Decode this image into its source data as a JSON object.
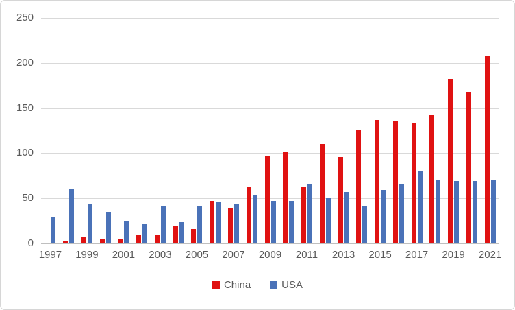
{
  "chart_data": {
    "type": "bar",
    "title": "",
    "xlabel": "",
    "ylabel": "",
    "categories": [
      1997,
      1998,
      1999,
      2000,
      2001,
      2002,
      2003,
      2004,
      2005,
      2006,
      2007,
      2008,
      2009,
      2010,
      2011,
      2012,
      2013,
      2014,
      2015,
      2016,
      2017,
      2018,
      2019,
      2020,
      2021
    ],
    "series": [
      {
        "name": "China",
        "color": "#e01212",
        "values": [
          1,
          3,
          7,
          5,
          5,
          10,
          10,
          19,
          16,
          47,
          39,
          62,
          97,
          102,
          63,
          110,
          96,
          126,
          137,
          136,
          134,
          142,
          182,
          168,
          208
        ]
      },
      {
        "name": "USA",
        "color": "#4a72b8",
        "values": [
          29,
          61,
          44,
          35,
          25,
          21,
          41,
          24,
          41,
          46,
          43,
          53,
          47,
          47,
          65,
          51,
          57,
          41,
          59,
          65,
          80,
          70,
          69,
          69,
          71
        ]
      }
    ],
    "ylim": [
      0,
      250
    ],
    "yticks": [
      0,
      50,
      100,
      150,
      200,
      250
    ],
    "xtick_labels": [
      "1997",
      "1999",
      "2001",
      "2003",
      "2005",
      "2007",
      "2009",
      "2011",
      "2013",
      "2015",
      "2017",
      "2019",
      "2021"
    ],
    "xtick_step": 2,
    "grid": true,
    "legend_position": "bottom"
  },
  "colors": {
    "grid": "#d9d9d9",
    "axis": "#bfbfbf",
    "tick_text": "#595959",
    "background": "#ffffff"
  },
  "legend": {
    "items": [
      {
        "label": "China"
      },
      {
        "label": "USA"
      }
    ]
  }
}
